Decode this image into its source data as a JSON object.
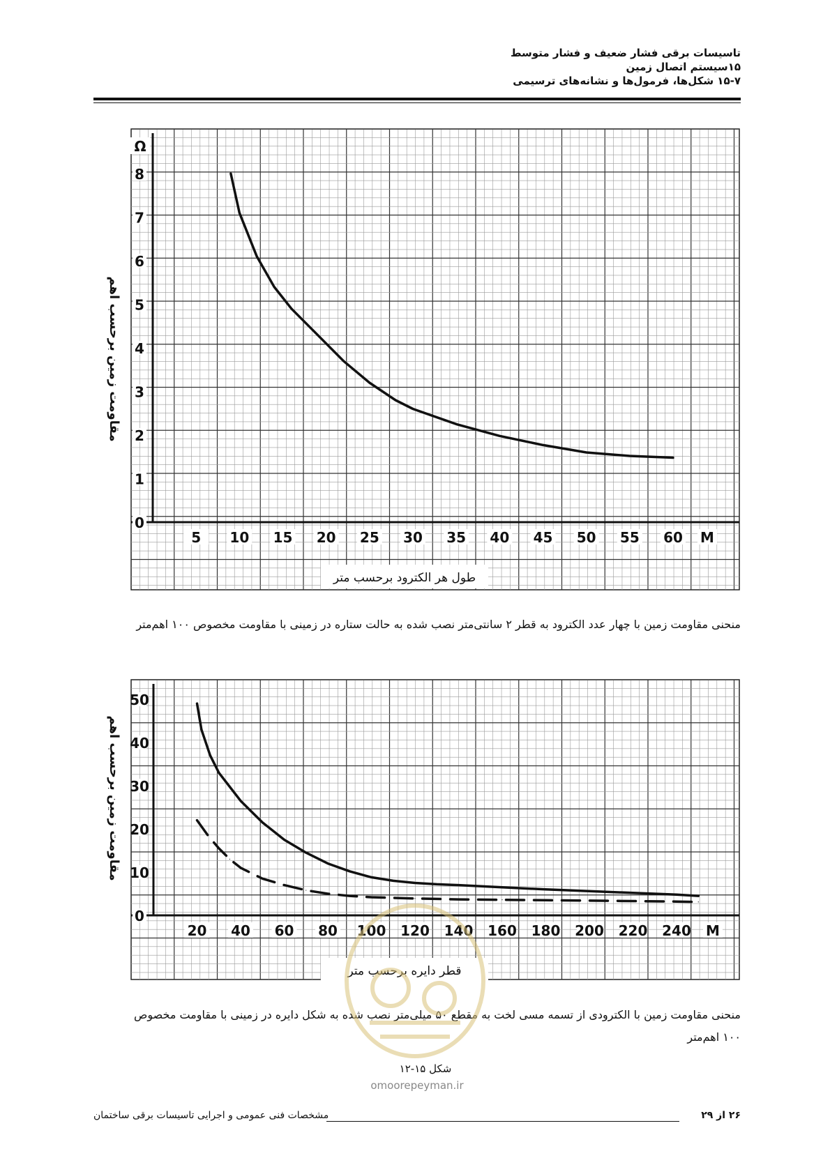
{
  "header": {
    "line1": "تاسیسات برقی فشار ضعیف و فشار متوسط",
    "line2": "۱۵سیستم اتصال زمین",
    "line3": "۱۵-۷ شکل‌ها، فرمول‌ها و نشانه‌های ترسیمی"
  },
  "chart_data": [
    {
      "type": "line",
      "xlabel": "طول هر الکترود برحسب متر",
      "ylabel": "مقاومت زمین برحسب اهم",
      "y_unit": "Ω",
      "x_unit": "M",
      "xlim": [
        0,
        60
      ],
      "ylim": [
        0,
        8
      ],
      "x_ticks": [
        5,
        10,
        15,
        20,
        25,
        30,
        35,
        40,
        45,
        50,
        55,
        60
      ],
      "y_ticks": [
        0,
        1,
        2,
        3,
        4,
        5,
        6,
        7,
        8
      ],
      "grid": true,
      "series": [
        {
          "style": "solid",
          "x": [
            9,
            10,
            12,
            14,
            16,
            18,
            20,
            22,
            25,
            28,
            30,
            35,
            40,
            45,
            50,
            55,
            60
          ],
          "y": [
            8.0,
            7.1,
            6.1,
            5.4,
            4.9,
            4.5,
            4.1,
            3.7,
            3.2,
            2.8,
            2.6,
            2.25,
            1.98,
            1.77,
            1.6,
            1.52,
            1.48
          ]
        }
      ]
    },
    {
      "type": "line",
      "xlabel": "قطر دایره برحسب متر",
      "ylabel": "مقاومت زمین برحسب اهم",
      "x_unit": "M",
      "xlim": [
        0,
        240
      ],
      "ylim": [
        0,
        50
      ],
      "x_ticks": [
        20,
        40,
        60,
        80,
        100,
        120,
        140,
        160,
        180,
        200,
        220,
        240
      ],
      "y_ticks": [
        0,
        10,
        20,
        30,
        40,
        50
      ],
      "grid": true,
      "series": [
        {
          "style": "solid",
          "x": [
            20,
            22,
            26,
            30,
            40,
            50,
            60,
            70,
            80,
            90,
            100,
            110,
            120,
            130,
            140,
            160,
            180,
            200,
            220,
            240,
            250
          ],
          "y": [
            49,
            43,
            37,
            33,
            26.5,
            21.5,
            17.5,
            14.5,
            12,
            10.2,
            8.8,
            8.0,
            7.5,
            7.2,
            7.0,
            6.5,
            6.0,
            5.6,
            5.2,
            4.8,
            4.5
          ]
        },
        {
          "style": "dashed",
          "x": [
            20,
            25,
            30,
            35,
            40,
            50,
            60,
            70,
            80,
            90,
            100,
            120,
            140,
            160,
            180,
            200,
            220,
            240,
            250
          ],
          "y": [
            22,
            18.5,
            15.5,
            13,
            11,
            8.5,
            7,
            5.8,
            5.0,
            4.5,
            4.2,
            3.9,
            3.7,
            3.6,
            3.5,
            3.4,
            3.3,
            3.2,
            3.1
          ]
        }
      ]
    }
  ],
  "captions": {
    "chart1": "منحنی مقاومت زمین با چهار عدد الکترود به قطر ۲ سانتی‌متر نصب شده به حالت ستاره در زمینی با مقاومت مخصوص ۱۰۰ اهم‌متر",
    "chart2": "منحنی مقاومت زمین با الکترودی از تسمه مسی لخت به مقطع ۵۰ میلی‌متر نصب شده به شکل دایره در زمینی با مقاومت مخصوص ۱۰۰ اهم‌متر",
    "figure_label": "شکل ۱۵-۱۲"
  },
  "watermark": {
    "site": "omoorepeyman.ir"
  },
  "footer": {
    "title": "مشخصات فنی عمومی و اجرایی تاسیسات برقی ساختمان",
    "page": "۲۶ از ۲۹"
  },
  "colors": {
    "ink": "#111111",
    "grid": "#444444",
    "watermark": "#d9c27a"
  }
}
